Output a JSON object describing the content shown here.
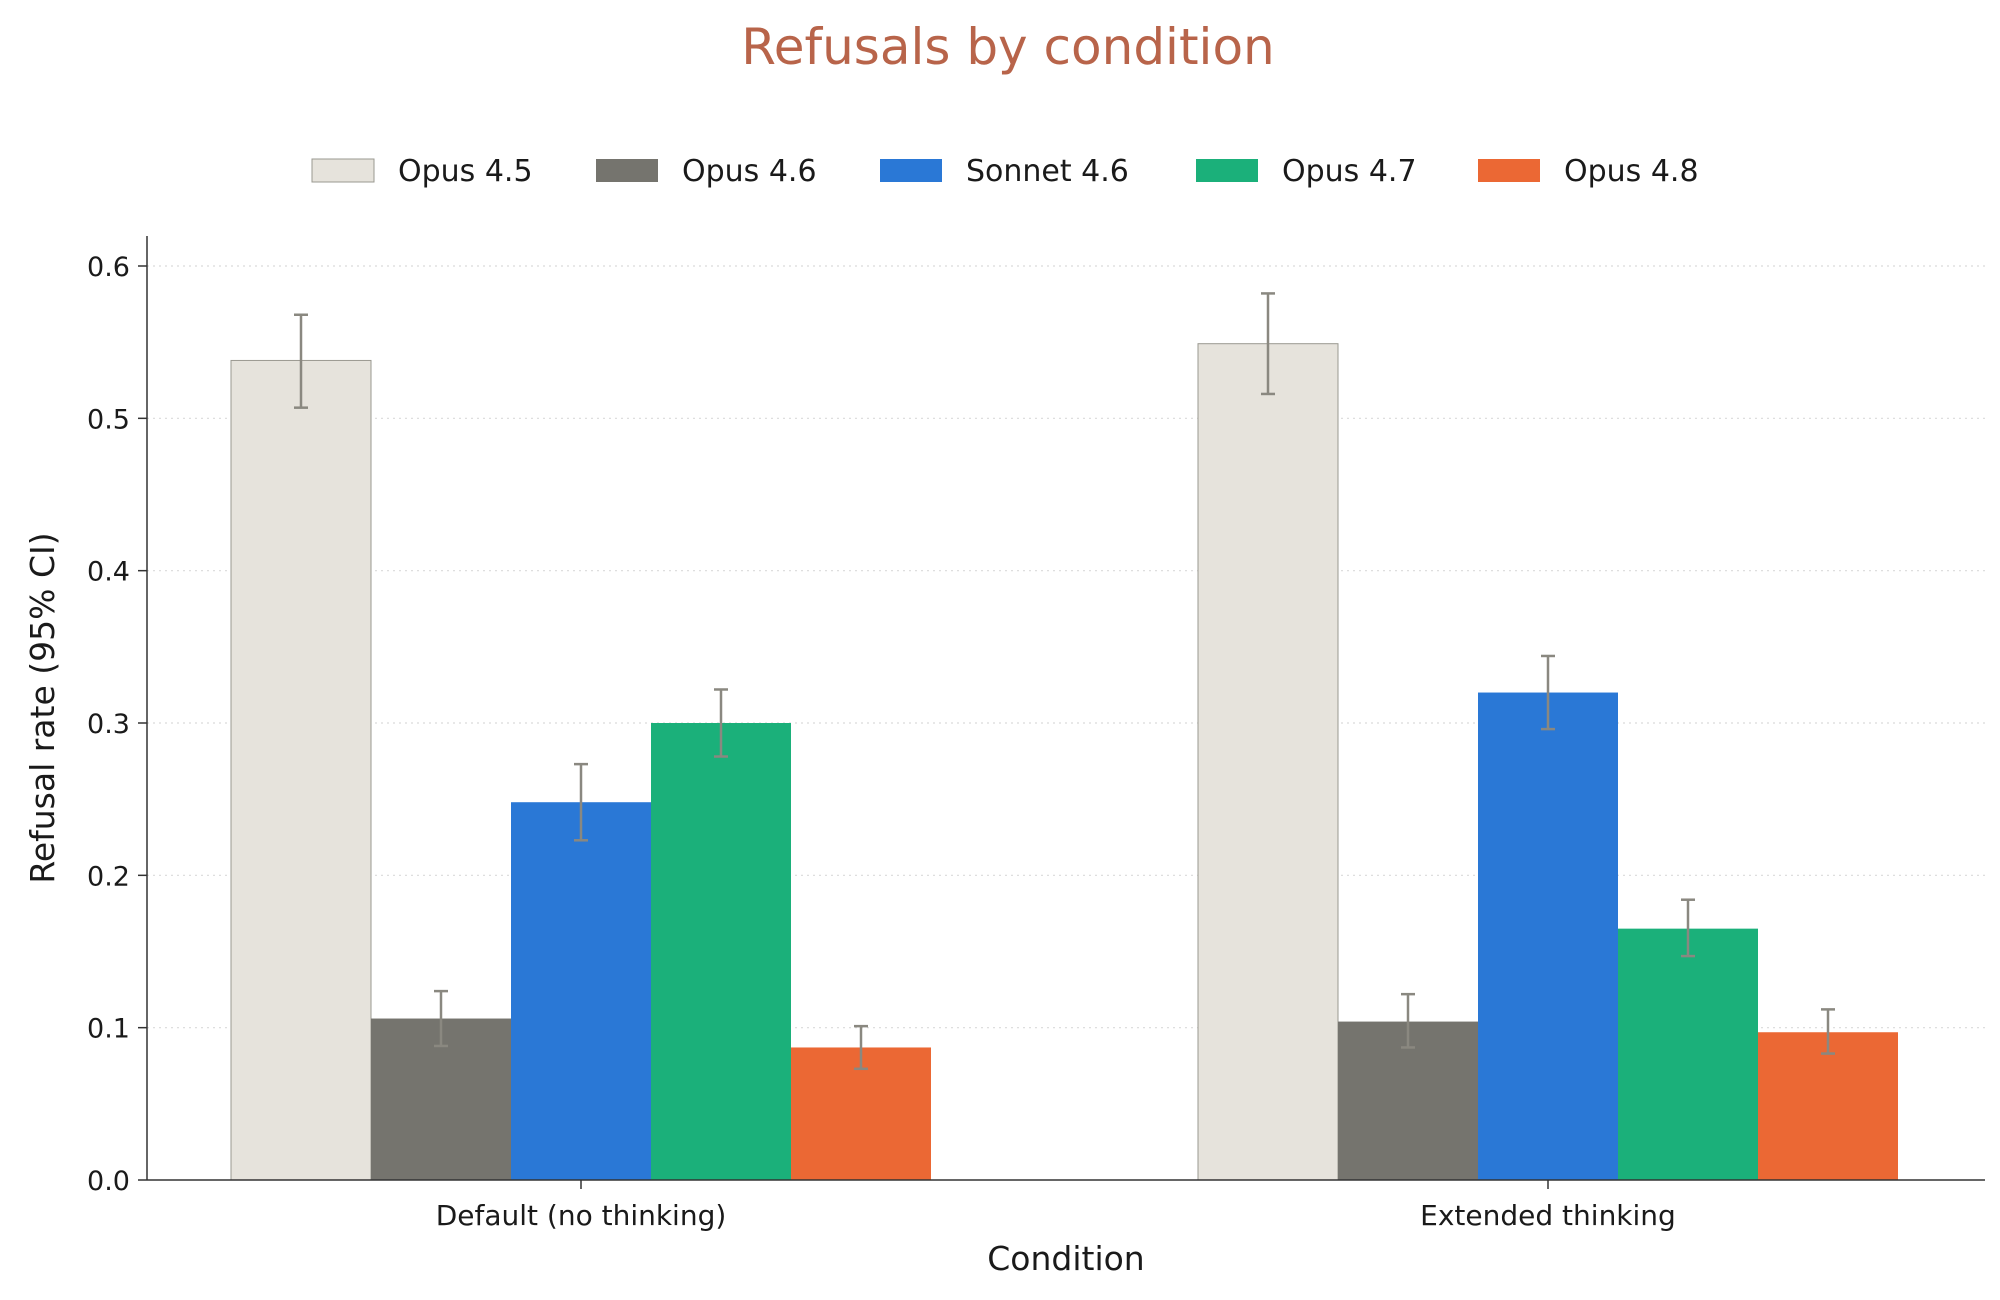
{
  "chart_data": {
    "type": "bar",
    "title": "Refusals by condition",
    "xlabel": "Condition",
    "ylabel": "Refusal rate (95% CI)",
    "ylim": [
      0,
      0.62
    ],
    "yticks": [
      "0.0",
      "0.1",
      "0.2",
      "0.3",
      "0.4",
      "0.5",
      "0.6"
    ],
    "grid": "horizontal dotted",
    "legend_position": "top-center",
    "categories": [
      "Default (no thinking)",
      "Extended thinking"
    ],
    "series": [
      {
        "name": "Opus 4.5",
        "color": "#e6e3dc",
        "values": [
          0.538,
          0.549
        ],
        "ci_low": [
          0.507,
          0.516
        ],
        "ci_high": [
          0.568,
          0.582
        ]
      },
      {
        "name": "Opus 4.6",
        "color": "#75746e",
        "values": [
          0.106,
          0.104
        ],
        "ci_low": [
          0.088,
          0.087
        ],
        "ci_high": [
          0.124,
          0.122
        ]
      },
      {
        "name": "Sonnet 4.6",
        "color": "#2a78d6",
        "values": [
          0.248,
          0.32
        ],
        "ci_low": [
          0.223,
          0.296
        ],
        "ci_high": [
          0.273,
          0.344
        ]
      },
      {
        "name": "Opus 4.7",
        "color": "#1bb07a",
        "values": [
          0.3,
          0.165
        ],
        "ci_low": [
          0.278,
          0.147
        ],
        "ci_high": [
          0.322,
          0.184
        ]
      },
      {
        "name": "Opus 4.8",
        "color": "#eb6834",
        "values": [
          0.087,
          0.097
        ],
        "ci_low": [
          0.073,
          0.083
        ],
        "ci_high": [
          0.101,
          0.112
        ]
      }
    ]
  }
}
